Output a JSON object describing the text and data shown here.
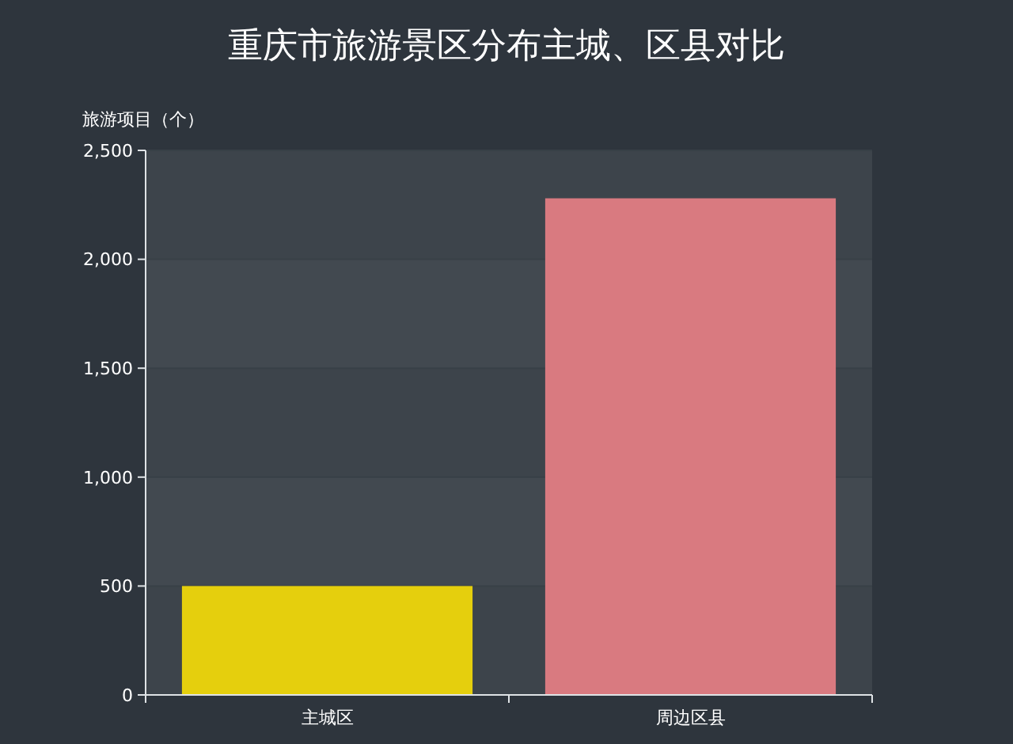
{
  "chart_data": {
    "type": "bar",
    "title": "重庆市旅游景区分布主城、区县对比",
    "ylabel": "旅游项目（个）",
    "categories": [
      "主城区",
      "周边区县"
    ],
    "values": [
      500,
      2280
    ],
    "colors": [
      "#e5cf0d",
      "#d97a80"
    ],
    "ylim": [
      0,
      2500
    ],
    "yticks": [
      {
        "value": 0,
        "label": "0"
      },
      {
        "value": 500,
        "label": "500"
      },
      {
        "value": 1000,
        "label": "1,000"
      },
      {
        "value": 1500,
        "label": "1,500"
      },
      {
        "value": 2000,
        "label": "2,000"
      },
      {
        "value": 2500,
        "label": "2,500"
      }
    ],
    "grid": "y"
  }
}
